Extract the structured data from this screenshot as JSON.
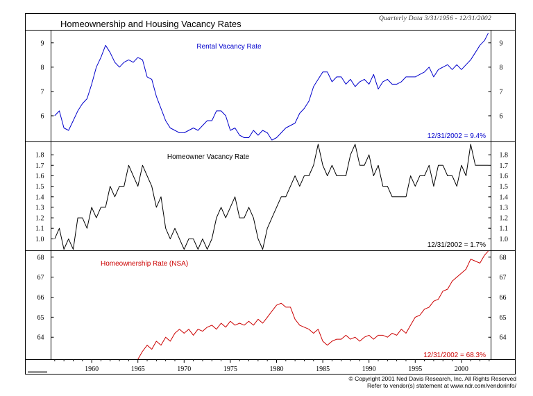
{
  "title": "Homeownership and Housing Vacancy Rates",
  "subtitle": "Quarterly Data 3/31/1956 - 12/31/2002",
  "copyright_line1": "© Copyright 2001 Ned Davis Research, Inc. All Rights Reserved",
  "copyright_line2": "Refer to vendor(s) statement at www.ndr.com/vendorinfo/",
  "colors": {
    "rental": "#0000cc",
    "homeowner": "#000000",
    "homeownership": "#cc0000"
  },
  "chart_data": [
    {
      "type": "line",
      "title": "Rental Vacancy Rate",
      "end_label": "12/31/2002 = 9.4%",
      "x_ticks": [
        1960,
        1965,
        1970,
        1975,
        1980,
        1985,
        1990,
        1995,
        2000
      ],
      "y_ticks": [
        "9",
        "8",
        "7",
        "6"
      ],
      "ylim": [
        5.0,
        9.45
      ],
      "grid": false,
      "series": [
        {
          "x": [
            1956.0,
            1956.5,
            1957.0,
            1957.5,
            1958.0,
            1958.5,
            1959.0,
            1959.5,
            1960.0,
            1960.5,
            1961.0,
            1961.5,
            1962.0,
            1962.5,
            1963.0,
            1963.5,
            1964.0,
            1964.5,
            1965.0,
            1965.5,
            1966.0,
            1966.5,
            1967.0,
            1967.5,
            1968.0,
            1968.5,
            1969.0,
            1969.5,
            1970.0,
            1970.5,
            1971.0,
            1971.5,
            1972.0,
            1972.5,
            1973.0,
            1973.5,
            1974.0,
            1974.5,
            1975.0,
            1975.5,
            1976.0,
            1976.5,
            1977.0,
            1977.5,
            1978.0,
            1978.5,
            1979.0,
            1979.5,
            1980.0,
            1980.5,
            1981.0,
            1981.5,
            1982.0,
            1982.5,
            1983.0,
            1983.5,
            1984.0,
            1984.5,
            1985.0,
            1985.5,
            1986.0,
            1986.5,
            1987.0,
            1987.5,
            1988.0,
            1988.5,
            1989.0,
            1989.5,
            1990.0,
            1990.5,
            1991.0,
            1991.5,
            1992.0,
            1992.5,
            1993.0,
            1993.5,
            1994.0,
            1994.5,
            1995.0,
            1995.5,
            1996.0,
            1996.5,
            1997.0,
            1997.5,
            1998.0,
            1998.5,
            1999.0,
            1999.5,
            2000.0,
            2000.5,
            2001.0,
            2001.5,
            2002.0,
            2002.5,
            2002.9
          ],
          "y": [
            6.0,
            6.2,
            5.5,
            5.4,
            5.8,
            6.2,
            6.5,
            6.7,
            7.3,
            8.0,
            8.4,
            8.9,
            8.6,
            8.2,
            8.0,
            8.2,
            8.3,
            8.2,
            8.4,
            8.3,
            7.6,
            7.5,
            6.8,
            6.3,
            5.8,
            5.5,
            5.4,
            5.3,
            5.3,
            5.4,
            5.5,
            5.4,
            5.6,
            5.8,
            5.8,
            6.2,
            6.2,
            6.0,
            5.4,
            5.5,
            5.2,
            5.1,
            5.1,
            5.4,
            5.2,
            5.4,
            5.3,
            5.0,
            5.1,
            5.3,
            5.5,
            5.6,
            5.7,
            6.1,
            6.3,
            6.6,
            7.2,
            7.5,
            7.8,
            7.8,
            7.4,
            7.6,
            7.6,
            7.3,
            7.5,
            7.2,
            7.4,
            7.5,
            7.3,
            7.7,
            7.1,
            7.4,
            7.5,
            7.3,
            7.3,
            7.4,
            7.6,
            7.6,
            7.6,
            7.7,
            7.8,
            8.0,
            7.6,
            7.9,
            8.0,
            8.1,
            7.9,
            8.1,
            7.9,
            8.1,
            8.3,
            8.6,
            8.9,
            9.1,
            9.4
          ]
        }
      ]
    },
    {
      "type": "line",
      "title": "Homeowner Vacancy Rate",
      "end_label": "12/31/2002 = 1.7%",
      "y_ticks": [
        "1.8",
        "1.7",
        "1.6",
        "1.5",
        "1.4",
        "1.3",
        "1.2",
        "1.1",
        "1.0"
      ],
      "ylim": [
        0.91,
        1.9
      ],
      "grid": false,
      "series": [
        {
          "x": [
            1956.0,
            1956.5,
            1957.0,
            1957.5,
            1958.0,
            1958.5,
            1959.0,
            1959.5,
            1960.0,
            1960.5,
            1961.0,
            1961.5,
            1962.0,
            1962.5,
            1963.0,
            1963.5,
            1964.0,
            1964.5,
            1965.0,
            1965.5,
            1966.0,
            1966.5,
            1967.0,
            1967.5,
            1968.0,
            1968.5,
            1969.0,
            1969.5,
            1970.0,
            1970.5,
            1971.0,
            1971.5,
            1972.0,
            1972.5,
            1973.0,
            1973.5,
            1974.0,
            1974.5,
            1975.0,
            1975.5,
            1976.0,
            1976.5,
            1977.0,
            1977.5,
            1978.0,
            1978.5,
            1979.0,
            1979.5,
            1980.0,
            1980.5,
            1981.0,
            1981.5,
            1982.0,
            1982.5,
            1983.0,
            1983.5,
            1984.0,
            1984.5,
            1985.0,
            1985.5,
            1986.0,
            1986.5,
            1987.0,
            1987.5,
            1988.0,
            1988.5,
            1989.0,
            1989.5,
            1990.0,
            1990.5,
            1991.0,
            1991.5,
            1992.0,
            1992.5,
            1993.0,
            1993.5,
            1994.0,
            1994.5,
            1995.0,
            1995.5,
            1996.0,
            1996.5,
            1997.0,
            1997.5,
            1998.0,
            1998.5,
            1999.0,
            1999.5,
            2000.0,
            2000.5,
            2001.0,
            2001.5,
            2002.0,
            2002.5,
            2002.9
          ],
          "y": [
            1.0,
            1.1,
            0.9,
            1.0,
            0.9,
            1.2,
            1.2,
            1.1,
            1.3,
            1.2,
            1.3,
            1.3,
            1.5,
            1.4,
            1.5,
            1.5,
            1.7,
            1.6,
            1.5,
            1.7,
            1.6,
            1.5,
            1.3,
            1.4,
            1.1,
            1.0,
            1.1,
            1.0,
            0.9,
            1.0,
            1.0,
            0.9,
            1.0,
            0.9,
            1.0,
            1.2,
            1.3,
            1.2,
            1.3,
            1.4,
            1.2,
            1.2,
            1.3,
            1.2,
            1.0,
            0.9,
            1.1,
            1.2,
            1.3,
            1.4,
            1.4,
            1.5,
            1.6,
            1.5,
            1.6,
            1.6,
            1.7,
            1.9,
            1.7,
            1.6,
            1.7,
            1.6,
            1.6,
            1.6,
            1.8,
            1.9,
            1.7,
            1.7,
            1.8,
            1.6,
            1.7,
            1.5,
            1.5,
            1.4,
            1.4,
            1.4,
            1.4,
            1.6,
            1.5,
            1.6,
            1.6,
            1.7,
            1.5,
            1.7,
            1.7,
            1.6,
            1.6,
            1.5,
            1.7,
            1.6,
            1.9,
            1.7,
            1.7,
            1.7,
            1.7
          ]
        }
      ]
    },
    {
      "type": "line",
      "title": "Homeownership Rate (NSA)",
      "end_label": "12/31/2002 = 68.3%",
      "y_ticks": [
        "68",
        "67",
        "66",
        "65",
        "64"
      ],
      "ylim": [
        62.9,
        68.2
      ],
      "grid": false,
      "series": [
        {
          "x": [
            1965.0,
            1965.5,
            1966.0,
            1966.5,
            1967.0,
            1967.5,
            1968.0,
            1968.5,
            1969.0,
            1969.5,
            1970.0,
            1970.5,
            1971.0,
            1971.5,
            1972.0,
            1972.5,
            1973.0,
            1973.5,
            1974.0,
            1974.5,
            1975.0,
            1975.5,
            1976.0,
            1976.5,
            1977.0,
            1977.5,
            1978.0,
            1978.5,
            1979.0,
            1979.5,
            1980.0,
            1980.5,
            1981.0,
            1981.5,
            1982.0,
            1982.5,
            1983.0,
            1983.5,
            1984.0,
            1984.5,
            1985.0,
            1985.5,
            1986.0,
            1986.5,
            1987.0,
            1987.5,
            1988.0,
            1988.5,
            1989.0,
            1989.5,
            1990.0,
            1990.5,
            1991.0,
            1991.5,
            1992.0,
            1992.5,
            1993.0,
            1993.5,
            1994.0,
            1994.5,
            1995.0,
            1995.5,
            1996.0,
            1996.5,
            1997.0,
            1997.5,
            1998.0,
            1998.5,
            1999.0,
            1999.5,
            2000.0,
            2000.5,
            2001.0,
            2001.5,
            2002.0,
            2002.5,
            2002.9
          ],
          "y": [
            62.9,
            63.3,
            63.6,
            63.4,
            63.8,
            63.6,
            64.0,
            63.8,
            64.2,
            64.4,
            64.2,
            64.4,
            64.1,
            64.4,
            64.3,
            64.5,
            64.6,
            64.4,
            64.7,
            64.5,
            64.8,
            64.6,
            64.7,
            64.6,
            64.8,
            64.6,
            64.9,
            64.7,
            65.0,
            65.3,
            65.6,
            65.7,
            65.5,
            65.5,
            64.9,
            64.6,
            64.5,
            64.4,
            64.2,
            64.4,
            63.8,
            63.6,
            63.8,
            63.9,
            63.9,
            64.1,
            63.9,
            64.0,
            63.8,
            64.0,
            64.1,
            63.9,
            64.1,
            64.1,
            64.0,
            64.2,
            64.1,
            64.4,
            64.2,
            64.6,
            65.0,
            65.1,
            65.4,
            65.5,
            65.8,
            65.9,
            66.3,
            66.4,
            66.8,
            67.0,
            67.2,
            67.4,
            67.9,
            67.8,
            67.7,
            68.1,
            68.3
          ]
        }
      ]
    }
  ]
}
